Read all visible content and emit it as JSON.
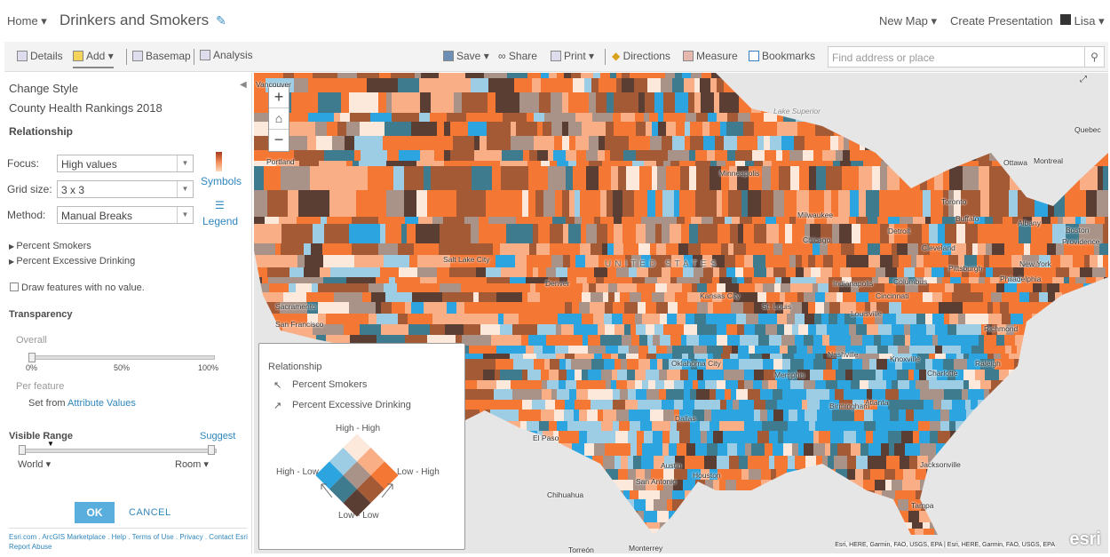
{
  "header": {
    "home": "Home",
    "title": "Drinkers and Smokers",
    "new_map": "New Map",
    "create_presentation": "Create Presentation",
    "user": "Lisa"
  },
  "toolbar": {
    "details": "Details",
    "add": "Add",
    "basemap": "Basemap",
    "analysis": "Analysis",
    "save": "Save",
    "share": "Share",
    "print": "Print",
    "directions": "Directions",
    "measure": "Measure",
    "bookmarks": "Bookmarks",
    "search_placeholder": "Find address or place"
  },
  "panel": {
    "heading": "Change Style",
    "layer": "County Health Rankings 2018",
    "section": "Relationship",
    "focus_label": "Focus:",
    "focus_value": "High values",
    "grid_label": "Grid size:",
    "grid_value": "3 x 3",
    "method_label": "Method:",
    "method_value": "Manual Breaks",
    "symbols": "Symbols",
    "legend": "Legend",
    "field1": "Percent Smokers",
    "field2": "Percent Excessive Drinking",
    "draw_no_value": "Draw features with no value.",
    "draw_no_value_checked": false,
    "transparency": "Transparency",
    "overall": "Overall",
    "ticks": [
      "0%",
      "50%",
      "100%"
    ],
    "transparency_value_percent": 0,
    "per_feature": "Per feature",
    "set_from": "Set from",
    "attribute_values": "Attribute Values",
    "visible_range": "Visible Range",
    "suggest": "Suggest",
    "range_min": "World",
    "range_max": "Room",
    "ok": "OK",
    "cancel": "CANCEL",
    "footer": [
      "Esri.com",
      "ArcGIS Marketplace",
      "Help",
      "Terms of Use",
      "Privacy",
      "Contact Esri",
      "Report Abuse"
    ]
  },
  "legend": {
    "title": "Relationship",
    "field1": "Percent Smokers",
    "field2": "Percent Excessive Drinking",
    "top": "High - High",
    "left": "High - Low",
    "right": "Low - High",
    "bottom": "Low - Low",
    "colors": [
      "#fde9dc",
      "#f9ae85",
      "#f57734",
      "#9ccde4",
      "#a99388",
      "#a55a36",
      "#2ba4df",
      "#3f7b8f",
      "#5a3d33"
    ]
  },
  "map": {
    "country_label": "UNITED STATES",
    "lake_label": "Lake Superior",
    "attribution": "Esri, HERE, Garmin, FAO, USGS, EPA | Esri, HERE, Garmin, FAO, USGS, EPA",
    "logo": "esri",
    "cities": [
      "Vancouver",
      "Portland",
      "Salt Lake City",
      "Sacramento",
      "San Francisco",
      "Denver",
      "Minneapolis",
      "Milwaukee",
      "Chicago",
      "Detroit",
      "Toronto",
      "Ottawa",
      "Montreal",
      "Quebec",
      "Buffalo",
      "Albany",
      "Boston",
      "Providence",
      "Cleveland",
      "Pittsburgh",
      "New York",
      "Philadelphia",
      "Indianapolis",
      "Columbus",
      "Cincinnati",
      "Kansas City",
      "St. Louis",
      "Louisville",
      "Richmond",
      "Oklahoma City",
      "Nashville",
      "Knoxville",
      "Charlotte",
      "Raleigh",
      "Memphis",
      "Atlanta",
      "Birmingham",
      "Dallas",
      "El Paso",
      "Austin",
      "Houston",
      "San Antonio",
      "Jacksonville",
      "Chihuahua",
      "Tampa",
      "Monterrey",
      "Torreón"
    ]
  }
}
